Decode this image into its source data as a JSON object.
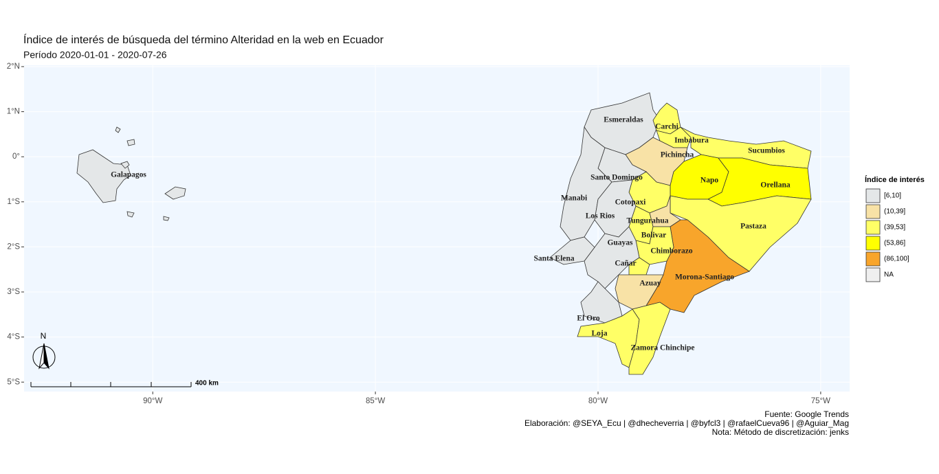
{
  "title": "Índice de interés de búsqueda del término Alteridad en la web en Ecuador",
  "subtitle": "Período 2020-01-01 - 2020-07-26",
  "axes": {
    "xlim": [
      -92.89,
      -74.35
    ],
    "ylim": [
      -5.21,
      2.03
    ],
    "xticks": [
      {
        "value": -90,
        "label": "90°W"
      },
      {
        "value": -85,
        "label": "85°W"
      },
      {
        "value": -80,
        "label": "80°W"
      },
      {
        "value": -75,
        "label": "75°W"
      }
    ],
    "yticks": [
      {
        "value": 2,
        "label": "2°N"
      },
      {
        "value": 1,
        "label": "1°N"
      },
      {
        "value": 0,
        "label": "0°"
      },
      {
        "value": -1,
        "label": "1°S"
      },
      {
        "value": -2,
        "label": "2°S"
      },
      {
        "value": -3,
        "label": "3°S"
      },
      {
        "value": -4,
        "label": "4°S"
      },
      {
        "value": -5,
        "label": "5°S"
      }
    ]
  },
  "legend": {
    "title": "Índice de interés",
    "items": [
      {
        "label": "[6,10]",
        "color": "#e4e7e8"
      },
      {
        "label": "(10,39]",
        "color": "#f8e2a6"
      },
      {
        "label": "(39,53]",
        "color": "#ffff66"
      },
      {
        "label": "(53,86]",
        "color": "#ffff00"
      },
      {
        "label": "(86,100]",
        "color": "#f8a52b"
      },
      {
        "label": "NA",
        "color": "#efefef"
      }
    ]
  },
  "provinces": [
    {
      "name": "Esmeraldas",
      "class": "[6,10]"
    },
    {
      "name": "Carchi",
      "class": "(39,53]"
    },
    {
      "name": "Imbabura",
      "class": "(39,53]"
    },
    {
      "name": "Sucumbios",
      "class": "(39,53]"
    },
    {
      "name": "Pichincha",
      "class": "(10,39]"
    },
    {
      "name": "Santo Domingo",
      "class": "[6,10]"
    },
    {
      "name": "Napo",
      "class": "(53,86]"
    },
    {
      "name": "Orellana",
      "class": "(53,86]"
    },
    {
      "name": "Manabi",
      "class": "[6,10]"
    },
    {
      "name": "Cotopaxi",
      "class": "(39,53]"
    },
    {
      "name": "Los Rios",
      "class": "[6,10]"
    },
    {
      "name": "Pastaza",
      "class": "(39,53]"
    },
    {
      "name": "Tungurahua",
      "class": "(10,39]"
    },
    {
      "name": "Bolivar",
      "class": "(39,53]"
    },
    {
      "name": "Morona-Santiago",
      "class": "(86,100]"
    },
    {
      "name": "Chimborazo",
      "class": "(39,53]"
    },
    {
      "name": "Guayas",
      "class": "[6,10]"
    },
    {
      "name": "Santa Elena",
      "class": "[6,10]"
    },
    {
      "name": "Cañar",
      "class": "(39,53]"
    },
    {
      "name": "Azuay",
      "class": "(10,39]"
    },
    {
      "name": "El Oro",
      "class": "[6,10]"
    },
    {
      "name": "Loja",
      "class": "(39,53]"
    },
    {
      "name": "Zamora Chinchipe",
      "class": "(39,53]"
    },
    {
      "name": "Galapagos",
      "class": "[6,10]"
    }
  ],
  "north_arrow": "N",
  "scale_bar": "400 km",
  "caption": [
    "Fuente: Google Trends",
    "Elaboración:  @SEYA_Ecu | @dhecheverria | @byfcl3 | @rafaelCueva96 | @Aguiar_Mag",
    "Nota: Método de discretización: jenks"
  ]
}
